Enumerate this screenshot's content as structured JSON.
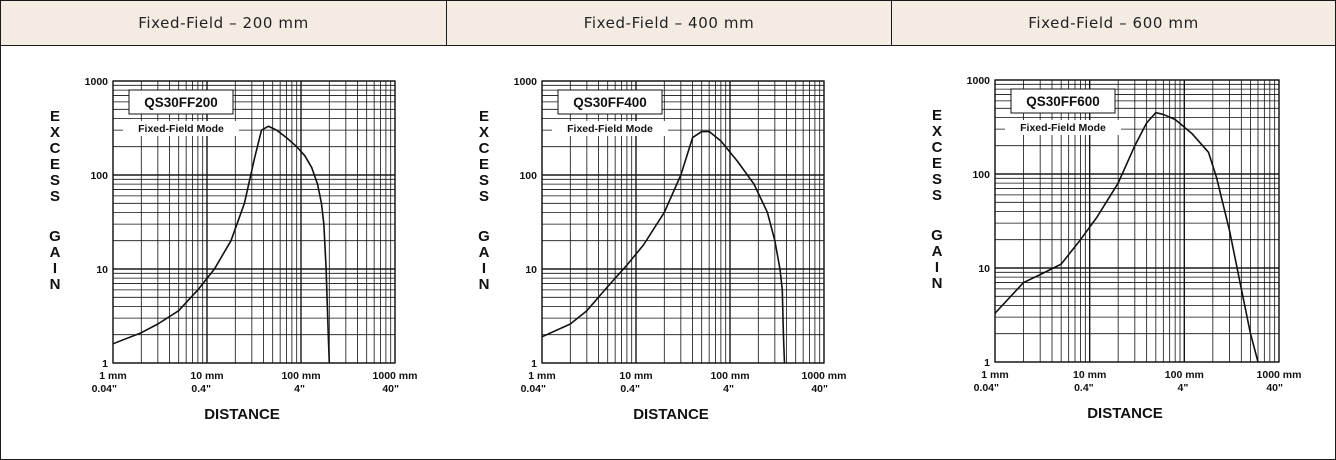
{
  "panels": [
    {
      "header": "Fixed-Field – 200 mm"
    },
    {
      "header": "Fixed-Field – 400 mm"
    },
    {
      "header": "Fixed-Field – 600 mm"
    }
  ],
  "colors": {
    "header_bg": "#f4ece3",
    "border": "#1a1a1a",
    "curve": "#111111"
  },
  "chart_data": [
    {
      "type": "line",
      "xscale": "log",
      "yscale": "log",
      "grid": true,
      "xlim": [
        1,
        1000
      ],
      "ylim": [
        1,
        1000
      ],
      "model": "QS30FF200",
      "mode": "Fixed-Field Mode",
      "ylabel": "EXCESS GAIN",
      "xlabel": "DISTANCE",
      "ytick_labels": [
        "1",
        "10",
        "100",
        "1000"
      ],
      "xtick_labels": [
        {
          "mm": "1 mm",
          "in": "0.04\""
        },
        {
          "mm": "10 mm",
          "in": "0.4\""
        },
        {
          "mm": "100 mm",
          "in": "4\""
        },
        {
          "mm": "1000 mm",
          "in": "40\""
        }
      ],
      "x": [
        1,
        2,
        3,
        5,
        8,
        12,
        18,
        25,
        32,
        38,
        45,
        55,
        70,
        90,
        110,
        130,
        150,
        165,
        175,
        185,
        195,
        200
      ],
      "y": [
        1.6,
        2.1,
        2.6,
        3.6,
        6,
        10,
        20,
        50,
        150,
        300,
        330,
        300,
        250,
        200,
        160,
        120,
        80,
        50,
        30,
        10,
        2,
        1
      ]
    },
    {
      "type": "line",
      "xscale": "log",
      "yscale": "log",
      "grid": true,
      "xlim": [
        1,
        1000
      ],
      "ylim": [
        1,
        1000
      ],
      "model": "QS30FF400",
      "mode": "Fixed-Field Mode",
      "ylabel": "EXCESS GAIN",
      "xlabel": "DISTANCE",
      "ytick_labels": [
        "1",
        "10",
        "100",
        "1000"
      ],
      "xtick_labels": [
        {
          "mm": "1 mm",
          "in": "0.04\""
        },
        {
          "mm": "10 mm",
          "in": "0.4\""
        },
        {
          "mm": "100 mm",
          "in": "4\""
        },
        {
          "mm": "1000 mm",
          "in": "40\""
        }
      ],
      "x": [
        1,
        2,
        3,
        5,
        8,
        12,
        20,
        30,
        40,
        50,
        60,
        80,
        120,
        180,
        250,
        300,
        340,
        360,
        370,
        380
      ],
      "y": [
        1.9,
        2.6,
        3.6,
        6.5,
        11,
        18,
        40,
        100,
        250,
        290,
        290,
        230,
        140,
        80,
        40,
        20,
        10,
        6,
        2,
        1
      ]
    },
    {
      "type": "line",
      "xscale": "log",
      "yscale": "log",
      "grid": true,
      "xlim": [
        1,
        1000
      ],
      "ylim": [
        1,
        1000
      ],
      "model": "QS30FF600",
      "mode": "Fixed-Field Mode",
      "ylabel": "EXCESS GAIN",
      "xlabel": "DISTANCE",
      "ytick_labels": [
        "1",
        "10",
        "100",
        "1000"
      ],
      "xtick_labels": [
        {
          "mm": "1 mm",
          "in": "0.04\""
        },
        {
          "mm": "10 mm",
          "in": "0.4\""
        },
        {
          "mm": "100 mm",
          "in": "4\""
        },
        {
          "mm": "1000 mm",
          "in": "40\""
        }
      ],
      "x": [
        1,
        2,
        3,
        5,
        8,
        12,
        20,
        30,
        40,
        50,
        60,
        80,
        120,
        180,
        220,
        300,
        400,
        500,
        600
      ],
      "y": [
        3.3,
        7,
        8.5,
        11,
        20,
        35,
        80,
        200,
        350,
        450,
        430,
        380,
        270,
        170,
        90,
        25,
        6,
        2,
        1
      ]
    }
  ]
}
